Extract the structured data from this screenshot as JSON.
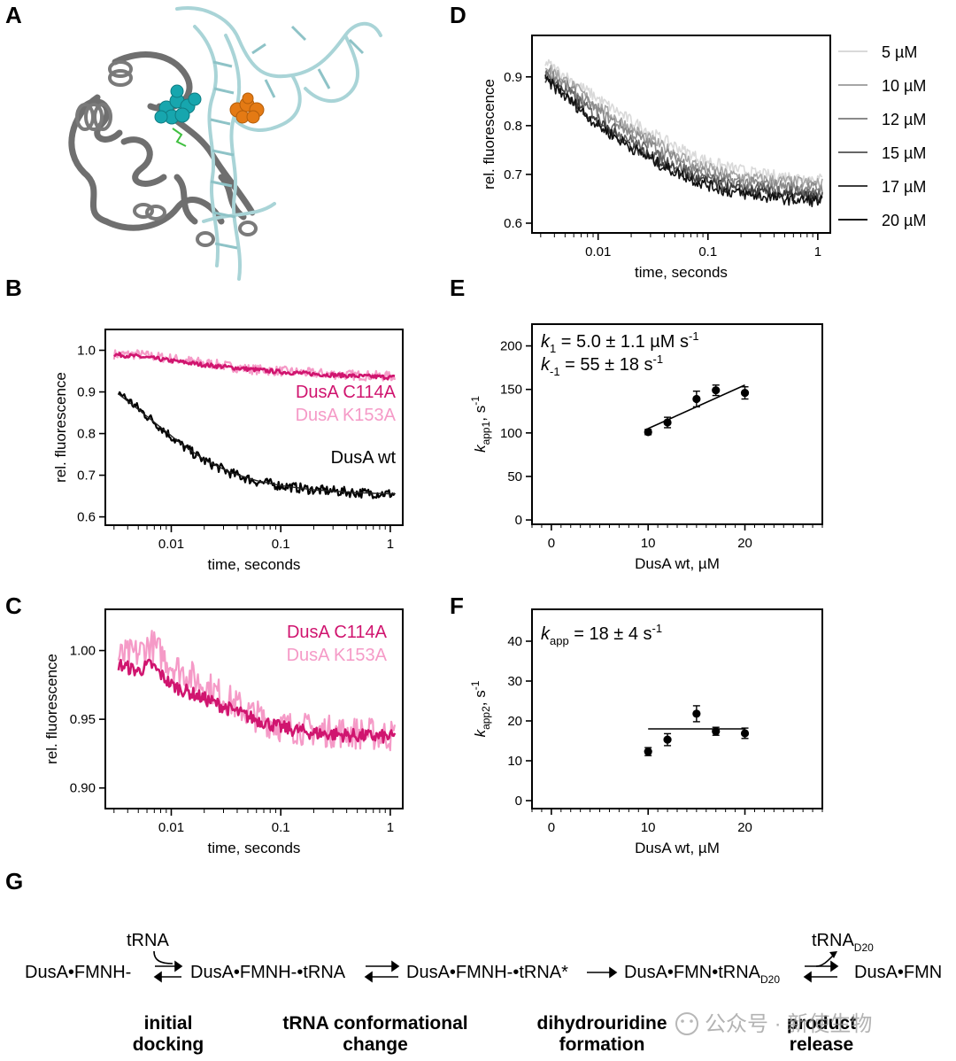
{
  "panel_letters": [
    "A",
    "B",
    "C",
    "D",
    "E",
    "F",
    "G"
  ],
  "structure": {
    "protein_color": "#6f6f6f",
    "rna_color": "#a9d4d7",
    "ligand1_color": "#17a6ae",
    "ligand2_color": "#e47a14"
  },
  "chart_data": [
    {
      "panel": "B",
      "type": "line",
      "xscale": "log",
      "xlim": [
        0.0025,
        1.3
      ],
      "ylim": [
        0.58,
        1.05
      ],
      "xticks": [
        0.01,
        0.1,
        1
      ],
      "xtick_labels": [
        "0.01",
        "0.1",
        "1"
      ],
      "yticks": [
        0.6,
        0.7,
        0.8,
        0.9,
        1.0
      ],
      "ytick_labels": [
        "0.6",
        "0.7",
        "0.8",
        "0.9",
        "1.0"
      ],
      "xlabel": "time, seconds",
      "ylabel": "rel. fluorescence",
      "series": [
        {
          "name": "DusA K153A",
          "color": "#f59ac7",
          "x": [
            0.003,
            0.005,
            0.01,
            0.02,
            0.05,
            0.1,
            0.2,
            0.5,
            1.1
          ],
          "y": [
            0.99,
            0.99,
            0.98,
            0.97,
            0.955,
            0.95,
            0.945,
            0.94,
            0.937
          ],
          "noise": 0.012
        },
        {
          "name": "DusA C114A",
          "color": "#d0156f",
          "x": [
            0.003,
            0.005,
            0.01,
            0.02,
            0.05,
            0.1,
            0.2,
            0.5,
            1.1
          ],
          "y": [
            0.99,
            0.985,
            0.975,
            0.965,
            0.955,
            0.948,
            0.943,
            0.938,
            0.935
          ],
          "noise": 0.005
        },
        {
          "name": "DusA wt",
          "color": "#000000",
          "x": [
            0.0033,
            0.005,
            0.008,
            0.012,
            0.02,
            0.035,
            0.06,
            0.1,
            0.2,
            0.5,
            1.1
          ],
          "y": [
            0.9,
            0.86,
            0.815,
            0.775,
            0.735,
            0.705,
            0.685,
            0.675,
            0.665,
            0.658,
            0.655
          ],
          "noise": 0.012
        }
      ],
      "fit": {
        "color": "#222222",
        "x": [
          0.0033,
          0.005,
          0.008,
          0.012,
          0.02,
          0.035,
          0.06,
          0.1,
          0.2,
          0.5,
          1.1
        ],
        "y": [
          0.895,
          0.858,
          0.815,
          0.778,
          0.737,
          0.706,
          0.687,
          0.675,
          0.665,
          0.658,
          0.655
        ]
      },
      "labels": [
        "DusA C114A",
        "DusA K153A",
        "DusA wt"
      ]
    },
    {
      "panel": "C",
      "type": "line",
      "xscale": "log",
      "xlim": [
        0.0025,
        1.3
      ],
      "ylim": [
        0.885,
        1.03
      ],
      "xticks": [
        0.01,
        0.1,
        1
      ],
      "xtick_labels": [
        "0.01",
        "0.1",
        "1"
      ],
      "yticks": [
        0.9,
        0.95,
        1.0
      ],
      "ytick_labels": [
        "0.90",
        "0.95",
        "1.00"
      ],
      "xlabel": "time, seconds",
      "ylabel": "rel. fluorescence",
      "series": [
        {
          "name": "DusA K153A",
          "color": "#f59ac7",
          "x": [
            0.0033,
            0.005,
            0.0065,
            0.01,
            0.02,
            0.05,
            0.1,
            0.2,
            0.5,
            1.1
          ],
          "y": [
            0.995,
            0.998,
            1.005,
            0.99,
            0.975,
            0.955,
            0.945,
            0.942,
            0.94,
            0.938
          ],
          "noise": 0.012
        },
        {
          "name": "DusA C114A",
          "color": "#d0156f",
          "x": [
            0.0033,
            0.005,
            0.0065,
            0.01,
            0.02,
            0.05,
            0.1,
            0.2,
            0.5,
            1.1
          ],
          "y": [
            0.99,
            0.985,
            0.99,
            0.975,
            0.965,
            0.952,
            0.944,
            0.94,
            0.938,
            0.937
          ],
          "noise": 0.005
        }
      ],
      "labels": [
        "DusA C114A",
        "DusA K153A"
      ]
    },
    {
      "panel": "D",
      "type": "line",
      "xscale": "log",
      "xlim": [
        0.0025,
        1.3
      ],
      "ylim": [
        0.58,
        0.985
      ],
      "xticks": [
        0.01,
        0.1,
        1
      ],
      "xtick_labels": [
        "0.01",
        "0.1",
        "1"
      ],
      "yticks": [
        0.6,
        0.7,
        0.8,
        0.9
      ],
      "ytick_labels": [
        "0.6",
        "0.7",
        "0.8",
        "0.9"
      ],
      "xlabel": "time, seconds",
      "ylabel": "rel. fluorescence",
      "legend_position": "right",
      "series": [
        {
          "name": "5 µM",
          "color": "#d9d9d9",
          "x": [
            0.0033,
            0.006,
            0.01,
            0.02,
            0.04,
            0.08,
            0.15,
            0.3,
            0.6,
            1.1
          ],
          "y": [
            0.93,
            0.89,
            0.855,
            0.81,
            0.77,
            0.735,
            0.715,
            0.7,
            0.695,
            0.69
          ],
          "noise": 0.012
        },
        {
          "name": "10 µM",
          "color": "#a6a6a6",
          "x": [
            0.0033,
            0.006,
            0.01,
            0.02,
            0.04,
            0.08,
            0.15,
            0.3,
            0.6,
            1.1
          ],
          "y": [
            0.925,
            0.88,
            0.84,
            0.795,
            0.755,
            0.72,
            0.7,
            0.69,
            0.685,
            0.68
          ],
          "noise": 0.012
        },
        {
          "name": "12 µM",
          "color": "#8a8a8a",
          "x": [
            0.0033,
            0.006,
            0.01,
            0.02,
            0.04,
            0.08,
            0.15,
            0.3,
            0.6,
            1.1
          ],
          "y": [
            0.915,
            0.87,
            0.83,
            0.785,
            0.745,
            0.71,
            0.69,
            0.68,
            0.675,
            0.672
          ],
          "noise": 0.012
        },
        {
          "name": "15 µM",
          "color": "#666666",
          "x": [
            0.0033,
            0.006,
            0.01,
            0.02,
            0.04,
            0.08,
            0.15,
            0.3,
            0.6,
            1.1
          ],
          "y": [
            0.905,
            0.86,
            0.815,
            0.77,
            0.73,
            0.7,
            0.68,
            0.67,
            0.665,
            0.662
          ],
          "noise": 0.012
        },
        {
          "name": "17 µM",
          "color": "#3d3d3d",
          "x": [
            0.0033,
            0.006,
            0.01,
            0.02,
            0.04,
            0.08,
            0.15,
            0.3,
            0.6,
            1.1
          ],
          "y": [
            0.9,
            0.85,
            0.805,
            0.76,
            0.72,
            0.69,
            0.672,
            0.662,
            0.656,
            0.652
          ],
          "noise": 0.012
        },
        {
          "name": "20 µM",
          "color": "#111111",
          "x": [
            0.0033,
            0.006,
            0.01,
            0.02,
            0.04,
            0.08,
            0.15,
            0.3,
            0.6,
            1.1
          ],
          "y": [
            0.895,
            0.845,
            0.8,
            0.755,
            0.715,
            0.685,
            0.665,
            0.655,
            0.648,
            0.645
          ],
          "noise": 0.012
        }
      ]
    },
    {
      "panel": "E",
      "type": "scatter",
      "xlim": [
        -2,
        28
      ],
      "ylim": [
        -5,
        225
      ],
      "xticks": [
        0,
        10,
        20
      ],
      "xtick_labels": [
        "0",
        "10",
        "20"
      ],
      "yticks": [
        0,
        50,
        100,
        150,
        200
      ],
      "ytick_labels": [
        "0",
        "50",
        "100",
        "150",
        "200"
      ],
      "xlabel": "DusA wt, µM",
      "ylabel": {
        "base": "k",
        "sub": "app1",
        "suffix": ", s",
        "sup": "-1"
      },
      "x": [
        10,
        12,
        15,
        17,
        20
      ],
      "y": [
        101,
        112,
        139,
        149,
        146
      ],
      "yerr": [
        3,
        6,
        9,
        6,
        7
      ],
      "fit": {
        "x": [
          10,
          20
        ],
        "y": [
          105,
          155
        ]
      },
      "annotations": [
        {
          "base": "k",
          "sub": "1",
          "text": " = 5.0 ± 1.1 µM s",
          "sup": "-1"
        },
        {
          "base": "k",
          "sub": "-1",
          "text": " = 55 ± 18  s",
          "sup": "-1"
        }
      ]
    },
    {
      "panel": "F",
      "type": "scatter",
      "xlim": [
        -2,
        28
      ],
      "ylim": [
        -2,
        48
      ],
      "xticks": [
        0,
        10,
        20
      ],
      "xtick_labels": [
        "0",
        "10",
        "20"
      ],
      "yticks": [
        0,
        10,
        20,
        30,
        40
      ],
      "ytick_labels": [
        "0",
        "10",
        "20",
        "30",
        "40"
      ],
      "xlabel": "DusA wt, µM",
      "ylabel": {
        "base": "k",
        "sub": "app2",
        "suffix": ", s",
        "sup": "-1"
      },
      "x": [
        10,
        12,
        15,
        17,
        20
      ],
      "y": [
        12.3,
        15.3,
        21.8,
        17.4,
        16.9
      ],
      "yerr": [
        1.0,
        1.5,
        2.0,
        1.0,
        1.3
      ],
      "fit": {
        "x": [
          10,
          20
        ],
        "y": [
          18,
          18
        ]
      },
      "annotations": [
        {
          "base": "k",
          "sub": "app",
          "text": " = 18 ± 4 s",
          "sup": "-1"
        }
      ]
    }
  ],
  "scheme": {
    "species": [
      "DusA•FMNH-",
      "DusA•FMNH-•tRNA",
      "DusA•FMNH-•tRNA*",
      "DusA•FMN•tRNA",
      "DusA•FMN"
    ],
    "species4_sub": "D20",
    "tRNA_in": "tRNA",
    "tRNA_out": "tRNA",
    "tRNA_out_sub": "D20",
    "stages": [
      {
        "line1": "initial",
        "line2": "docking"
      },
      {
        "line1": "tRNA conformational",
        "line2": "change"
      },
      {
        "line1": "dihydrouridine",
        "line2": "formation"
      },
      {
        "line1": "product",
        "line2": "release"
      }
    ]
  },
  "watermark": "公众号 · 新使生物"
}
